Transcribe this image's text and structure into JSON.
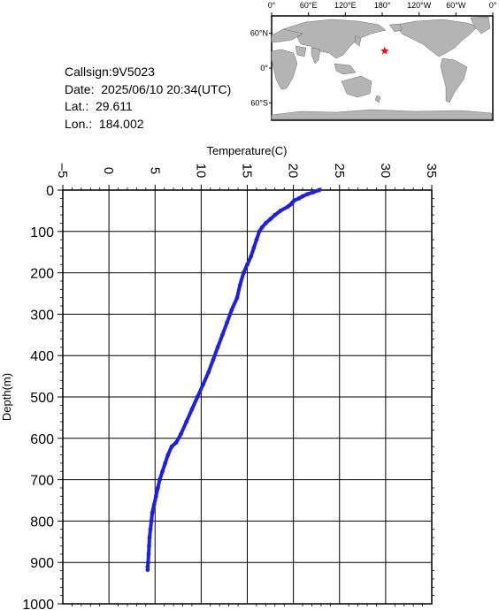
{
  "meta": {
    "callsign": "Callsign:9V5023",
    "date": "Date:  2025/06/10 20:34(UTC)",
    "lat": "Lat.:  29.611",
    "lon": "Lon.:  184.002"
  },
  "map": {
    "lon_labels": [
      "0°",
      "60°E",
      "120°E",
      "180°",
      "120°W",
      "60°W",
      "0°"
    ],
    "lat_labels": [
      "60°N",
      "0°",
      "60°S"
    ],
    "marker": {
      "lon": 184.002,
      "lat": 29.611
    },
    "colors": {
      "ocean": "#ffffff",
      "land": "#b4b4b4",
      "marker": "#ff0000"
    }
  },
  "chart_data": {
    "type": "line",
    "xlabel": "Temperature(C)",
    "ylabel": "Depth(m)",
    "xlim": [
      -5,
      35
    ],
    "ylim": [
      1000,
      0
    ],
    "x_ticks": [
      -5,
      0,
      5,
      10,
      15,
      20,
      25,
      30,
      35
    ],
    "y_ticks": [
      0,
      100,
      200,
      300,
      400,
      500,
      600,
      700,
      800,
      900,
      1000
    ],
    "grid": true,
    "line_color": "#1e1ee6",
    "series": [
      {
        "x": [
          22.8,
          22.2,
          21.5,
          21.0,
          20.6,
          20.1,
          19.9,
          19.7,
          19.4,
          18.6,
          18.0,
          17.5,
          17.0,
          16.6,
          16.3,
          16.0,
          15.7,
          15.4,
          15.0,
          14.6,
          14.2,
          13.9,
          13.3,
          12.8,
          12.3,
          11.8,
          11.3,
          10.8,
          10.2,
          9.6,
          9.0,
          8.4,
          7.8,
          7.3,
          6.8,
          6.4,
          6.1,
          5.8,
          5.5,
          5.3,
          5.1,
          4.9,
          4.7,
          4.6,
          4.5,
          4.4,
          4.35,
          4.3,
          4.25,
          4.2,
          4.2
        ],
        "y": [
          0,
          5,
          10,
          15,
          20,
          25,
          30,
          35,
          40,
          50,
          60,
          70,
          80,
          90,
          100,
          120,
          140,
          160,
          180,
          200,
          230,
          260,
          290,
          320,
          350,
          380,
          410,
          440,
          470,
          500,
          530,
          560,
          590,
          610,
          620,
          640,
          660,
          680,
          700,
          720,
          740,
          760,
          780,
          800,
          820,
          840,
          860,
          880,
          900,
          910,
          918
        ]
      }
    ]
  }
}
